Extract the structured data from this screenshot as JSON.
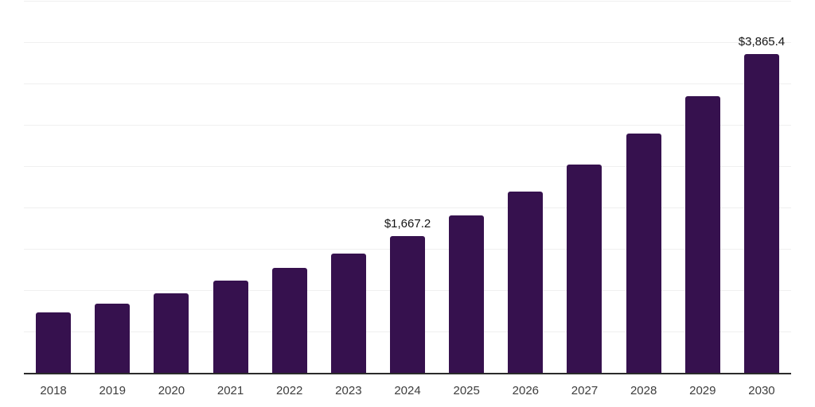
{
  "chart_data": {
    "type": "bar",
    "categories": [
      "2018",
      "2019",
      "2020",
      "2021",
      "2022",
      "2023",
      "2024",
      "2025",
      "2026",
      "2027",
      "2028",
      "2029",
      "2030"
    ],
    "values": [
      740,
      846,
      970,
      1125,
      1279,
      1452,
      1667.2,
      1913,
      2202,
      2529,
      2904,
      3356,
      3865.4
    ],
    "data_labels": [
      "",
      "",
      "",
      "",
      "",
      "",
      "$1,667.2",
      "",
      "",
      "",
      "",
      "",
      "$3,865.4"
    ],
    "ylim": [
      0,
      4500
    ],
    "gridline_step": 500,
    "grid": "horizontal",
    "legend_position": "none",
    "bar_color": "#36114e",
    "gridline_color": "#f0f0f0",
    "axis_line_color": "#2b2b2b",
    "label_color": "#141414",
    "tick_label_color": "#3d3d3d"
  }
}
